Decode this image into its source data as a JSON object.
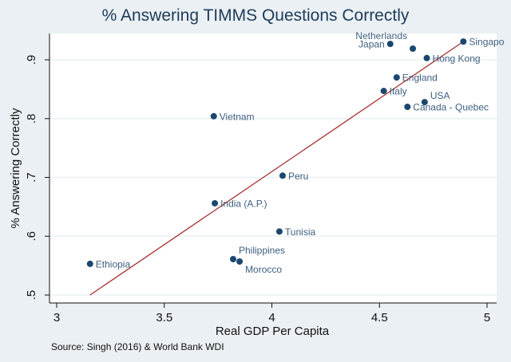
{
  "chart_data": {
    "type": "scatter",
    "title": "% Answering TIMMS Questions Correctly",
    "xlabel": "Real GDP Per Capita",
    "ylabel": "% Answering Correctly",
    "source": "Source: Singh (2016) & World Bank WDI",
    "xlim": [
      3,
      5
    ],
    "ylim": [
      0.5,
      0.93
    ],
    "xticks": [
      "3",
      "3.5",
      "4",
      "4.5",
      "5"
    ],
    "xtick_values": [
      3,
      3.5,
      4,
      4.5,
      5
    ],
    "yticks": [
      ".5",
      ".6",
      ".7",
      ".8",
      ".9"
    ],
    "ytick_values": [
      0.5,
      0.6,
      0.7,
      0.8,
      0.9
    ],
    "grid": "horizontal",
    "marker_color": "#1a476f",
    "fit_color": "#a83232",
    "points": [
      {
        "label": "Japan",
        "x": 4.55,
        "y": 0.927
      },
      {
        "label": "Netherlands",
        "x": 4.655,
        "y": 0.919
      },
      {
        "label": "Singapo",
        "x": 4.89,
        "y": 0.931
      },
      {
        "label": "Hong Kong",
        "x": 4.72,
        "y": 0.903
      },
      {
        "label": "England",
        "x": 4.58,
        "y": 0.87
      },
      {
        "label": "Italy",
        "x": 4.52,
        "y": 0.847
      },
      {
        "label": "USA",
        "x": 4.71,
        "y": 0.828
      },
      {
        "label": "Canada - Quebec",
        "x": 4.63,
        "y": 0.82
      },
      {
        "label": "Vietnam",
        "x": 3.73,
        "y": 0.804
      },
      {
        "label": "Peru",
        "x": 4.05,
        "y": 0.703
      },
      {
        "label": "India (A.P.)",
        "x": 3.735,
        "y": 0.656
      },
      {
        "label": "Tunisia",
        "x": 4.035,
        "y": 0.608
      },
      {
        "label": "Philippines",
        "x": 3.82,
        "y": 0.561
      },
      {
        "label": "Morocco",
        "x": 3.85,
        "y": 0.557
      },
      {
        "label": "Ethiopia",
        "x": 3.155,
        "y": 0.553
      }
    ],
    "fit_line": {
      "x": [
        3.155,
        4.89
      ],
      "y": [
        0.5,
        0.931
      ]
    }
  }
}
